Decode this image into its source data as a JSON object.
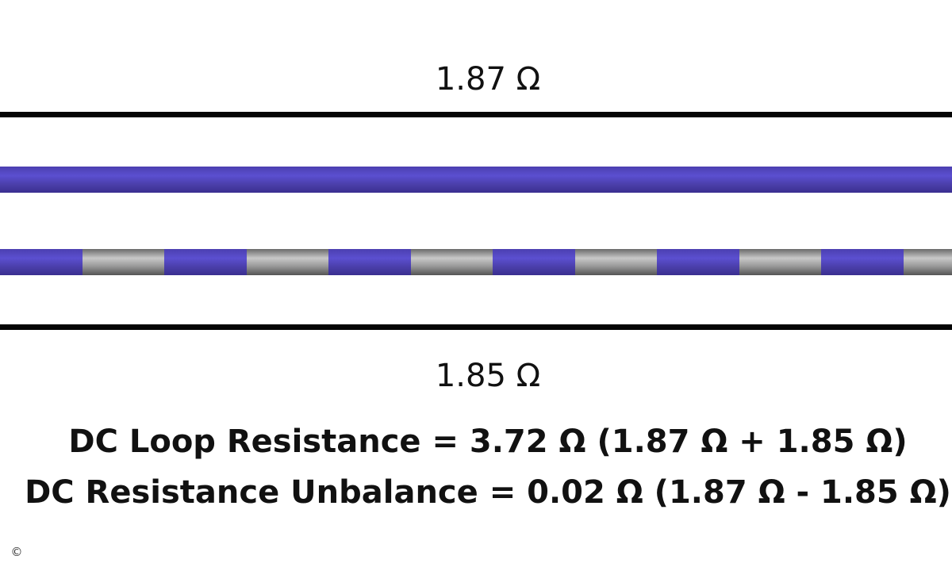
{
  "labels": {
    "top_resistance": "1.87 Ω",
    "bottom_resistance": "1.85 Ω"
  },
  "formulas": {
    "loop": "DC Loop Resistance = 3.72 Ω (1.87 Ω + 1.85 Ω)",
    "unbalance": "DC Resistance Unbalance = 0.02 Ω (1.87 Ω - 1.85 Ω)"
  },
  "wires": {
    "solid": {
      "color": "#4f43c0"
    },
    "striped": {
      "colors": [
        "#4f43c0",
        "#a8a8a8"
      ]
    }
  },
  "rules": {
    "color": "#050505"
  },
  "copyright_mark": "©"
}
